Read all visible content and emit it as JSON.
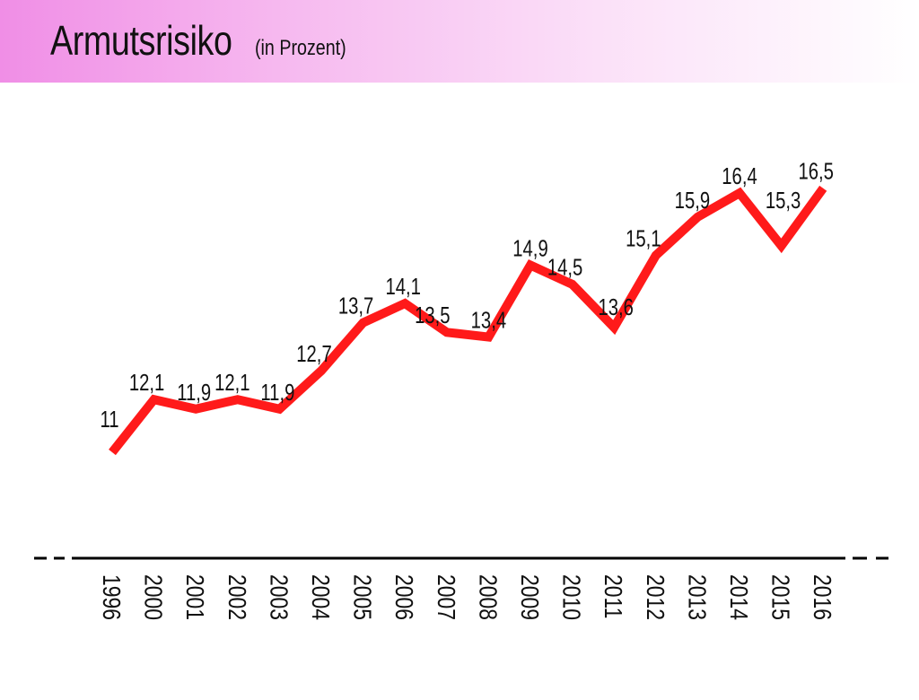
{
  "header": {
    "title": "Armutsrisiko",
    "subtitle": "(in Prozent)"
  },
  "colors": {
    "line": "#ff1a1a",
    "header_gradient_start": "#f08ee6",
    "axis": "#000000"
  },
  "chart_data": {
    "type": "line",
    "title": "Armutsrisiko",
    "subtitle": "(in Prozent)",
    "categories": [
      "1996",
      "2000",
      "2001",
      "2002",
      "2003",
      "2004",
      "2005",
      "2006",
      "2007",
      "2008",
      "2009",
      "2010",
      "2011",
      "2012",
      "2013",
      "2014",
      "2015",
      "2016"
    ],
    "series": [
      {
        "values": [
          11,
          12.1,
          11.9,
          12.1,
          11.9,
          12.7,
          13.7,
          14.1,
          13.5,
          13.4,
          14.9,
          14.5,
          13.6,
          15.1,
          15.9,
          16.4,
          15.3,
          16.5
        ],
        "labels": [
          "11",
          "12,1",
          "11,9",
          "12,1",
          "11,9",
          "12,7",
          "13,7",
          "14,1",
          "13,5",
          "13,4",
          "14,9",
          "14,5",
          "13,6",
          "15,1",
          "15,9",
          "16,4",
          "15,3",
          "16,5"
        ]
      }
    ],
    "xlabel": "",
    "ylabel": "",
    "grid": false,
    "legend": "none"
  }
}
